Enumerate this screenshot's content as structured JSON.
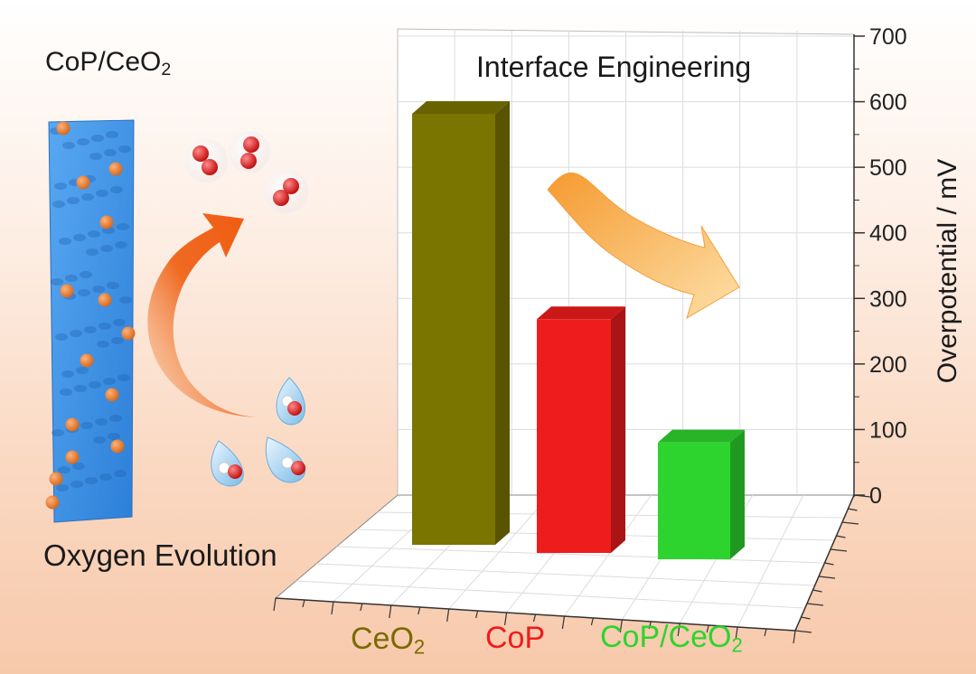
{
  "left_panel": {
    "title": "CoP/CeO2",
    "footer": "Oxygen Evolution"
  },
  "chart_data": {
    "type": "bar",
    "title": "Interface Engineering",
    "xlabel": "",
    "ylabel": "Overpotential / mV",
    "ylim": [
      0,
      700
    ],
    "yticks": [
      "0",
      "100",
      "200",
      "300",
      "400",
      "500",
      "600",
      "700"
    ],
    "categories": [
      "CeO2",
      "CoP",
      "CoP/CeO2"
    ],
    "values": [
      590,
      320,
      160
    ],
    "bar_colors": [
      "#7a7400",
      "#ee1c1c",
      "#2ed42e"
    ],
    "label_colors": [
      "#7a6a00",
      "#ee1c1c",
      "#2ed42e"
    ],
    "grid": true
  },
  "colors": {
    "carrier": "#3a8de0",
    "particle": "#e5802a",
    "curved_arrow": "#f06a22",
    "trend_arrow": "#f7a94a",
    "oxygen": "#dd1818"
  }
}
